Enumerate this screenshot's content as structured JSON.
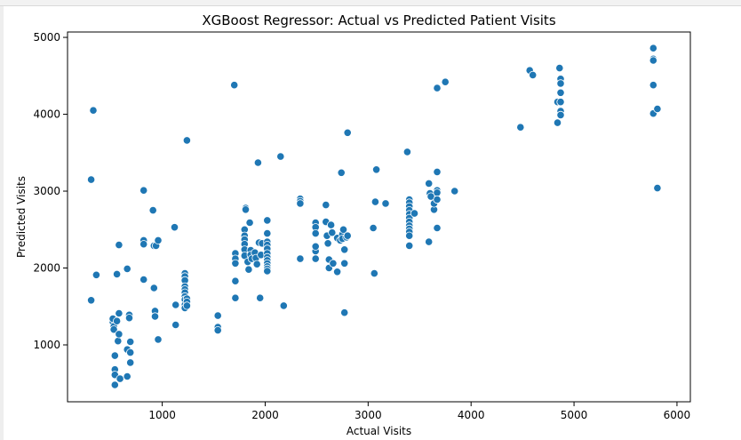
{
  "chart_data": {
    "type": "scatter",
    "title": "XGBoost Regressor: Actual vs Predicted Patient Visits",
    "xlabel": "Actual Visits",
    "ylabel": "Predicted Visits",
    "xlim": [
      80,
      6130
    ],
    "ylim": [
      260,
      5070
    ],
    "xticks": [
      1000,
      2000,
      3000,
      4000,
      5000,
      6000
    ],
    "yticks": [
      1000,
      2000,
      3000,
      4000,
      5000
    ],
    "xtick_labels": [
      "1000",
      "2000",
      "3000",
      "4000",
      "5000",
      "6000"
    ],
    "ytick_labels": [
      "1000",
      "2000",
      "3000",
      "4000",
      "5000"
    ],
    "grid": false,
    "marker_color": "#1f77b4",
    "marker_edge_color": "#ffffff",
    "points": [
      [
        330,
        4050
      ],
      [
        310,
        3150
      ],
      [
        310,
        1580
      ],
      [
        360,
        1910
      ],
      [
        520,
        1300
      ],
      [
        520,
        1340
      ],
      [
        530,
        1240
      ],
      [
        530,
        1200
      ],
      [
        540,
        860
      ],
      [
        540,
        680
      ],
      [
        540,
        610
      ],
      [
        540,
        480
      ],
      [
        560,
        1920
      ],
      [
        560,
        1310
      ],
      [
        570,
        1050
      ],
      [
        580,
        2300
      ],
      [
        580,
        1410
      ],
      [
        580,
        1140
      ],
      [
        590,
        560
      ],
      [
        660,
        1990
      ],
      [
        660,
        940
      ],
      [
        660,
        590
      ],
      [
        680,
        1390
      ],
      [
        680,
        1350
      ],
      [
        690,
        1040
      ],
      [
        690,
        900
      ],
      [
        690,
        770
      ],
      [
        820,
        3010
      ],
      [
        820,
        2360
      ],
      [
        820,
        2310
      ],
      [
        820,
        1850
      ],
      [
        910,
        2750
      ],
      [
        920,
        2290
      ],
      [
        920,
        1740
      ],
      [
        930,
        1440
      ],
      [
        930,
        1370
      ],
      [
        940,
        2290
      ],
      [
        960,
        2360
      ],
      [
        960,
        1070
      ],
      [
        1120,
        2530
      ],
      [
        1130,
        1520
      ],
      [
        1130,
        1260
      ],
      [
        1220,
        1930
      ],
      [
        1220,
        1890
      ],
      [
        1220,
        1840
      ],
      [
        1220,
        1760
      ],
      [
        1220,
        1720
      ],
      [
        1220,
        1680
      ],
      [
        1220,
        1630
      ],
      [
        1220,
        1590
      ],
      [
        1220,
        1520
      ],
      [
        1220,
        1480
      ],
      [
        1240,
        3660
      ],
      [
        1240,
        1600
      ],
      [
        1240,
        1560
      ],
      [
        1240,
        1510
      ],
      [
        1540,
        1380
      ],
      [
        1540,
        1230
      ],
      [
        1540,
        1190
      ],
      [
        1700,
        4380
      ],
      [
        1710,
        2190
      ],
      [
        1710,
        2120
      ],
      [
        1710,
        2060
      ],
      [
        1710,
        1830
      ],
      [
        1710,
        1610
      ],
      [
        1800,
        2500
      ],
      [
        1800,
        2420
      ],
      [
        1800,
        2370
      ],
      [
        1800,
        2310
      ],
      [
        1800,
        2240
      ],
      [
        1800,
        2160
      ],
      [
        1810,
        2780
      ],
      [
        1810,
        2760
      ],
      [
        1830,
        2080
      ],
      [
        1840,
        1980
      ],
      [
        1850,
        2590
      ],
      [
        1860,
        2230
      ],
      [
        1860,
        2170
      ],
      [
        1870,
        2120
      ],
      [
        1900,
        2200
      ],
      [
        1910,
        2130
      ],
      [
        1920,
        2050
      ],
      [
        1930,
        3370
      ],
      [
        1940,
        2330
      ],
      [
        1950,
        1610
      ],
      [
        1960,
        2170
      ],
      [
        1970,
        2320
      ],
      [
        2020,
        2620
      ],
      [
        2020,
        2450
      ],
      [
        2020,
        2340
      ],
      [
        2020,
        2300
      ],
      [
        2020,
        2250
      ],
      [
        2020,
        2190
      ],
      [
        2020,
        2140
      ],
      [
        2020,
        2100
      ],
      [
        2020,
        2060
      ],
      [
        2020,
        2020
      ],
      [
        2020,
        1990
      ],
      [
        2020,
        1960
      ],
      [
        2150,
        3450
      ],
      [
        2180,
        1510
      ],
      [
        2340,
        2900
      ],
      [
        2340,
        2870
      ],
      [
        2340,
        2840
      ],
      [
        2340,
        2120
      ],
      [
        2490,
        2590
      ],
      [
        2490,
        2530
      ],
      [
        2490,
        2450
      ],
      [
        2490,
        2220
      ],
      [
        2490,
        2120
      ],
      [
        2490,
        2280
      ],
      [
        2590,
        2820
      ],
      [
        2590,
        2600
      ],
      [
        2600,
        2420
      ],
      [
        2610,
        2320
      ],
      [
        2620,
        2110
      ],
      [
        2620,
        2000
      ],
      [
        2640,
        2560
      ],
      [
        2650,
        2460
      ],
      [
        2660,
        2060
      ],
      [
        2700,
        2390
      ],
      [
        2700,
        1950
      ],
      [
        2730,
        2360
      ],
      [
        2740,
        3240
      ],
      [
        2750,
        2440
      ],
      [
        2750,
        2380
      ],
      [
        2760,
        2500
      ],
      [
        2770,
        2240
      ],
      [
        2770,
        2060
      ],
      [
        2770,
        1420
      ],
      [
        2790,
        2400
      ],
      [
        2800,
        3760
      ],
      [
        2800,
        2420
      ],
      [
        3050,
        2520
      ],
      [
        3060,
        1930
      ],
      [
        3070,
        2860
      ],
      [
        3080,
        3280
      ],
      [
        3170,
        2840
      ],
      [
        3380,
        3510
      ],
      [
        3400,
        2890
      ],
      [
        3400,
        2850
      ],
      [
        3400,
        2800
      ],
      [
        3400,
        2750
      ],
      [
        3400,
        2700
      ],
      [
        3400,
        2650
      ],
      [
        3400,
        2600
      ],
      [
        3400,
        2550
      ],
      [
        3400,
        2510
      ],
      [
        3400,
        2470
      ],
      [
        3400,
        2420
      ],
      [
        3400,
        2290
      ],
      [
        3450,
        2710
      ],
      [
        3590,
        3100
      ],
      [
        3590,
        2340
      ],
      [
        3600,
        2970
      ],
      [
        3610,
        2930
      ],
      [
        3640,
        2760
      ],
      [
        3640,
        2840
      ],
      [
        3670,
        4340
      ],
      [
        3670,
        3250
      ],
      [
        3670,
        3010
      ],
      [
        3670,
        2980
      ],
      [
        3670,
        2890
      ],
      [
        3670,
        2520
      ],
      [
        3750,
        4420
      ],
      [
        3840,
        3000
      ],
      [
        4480,
        3830
      ],
      [
        4570,
        4570
      ],
      [
        4600,
        4510
      ],
      [
        4840,
        4160
      ],
      [
        4840,
        3890
      ],
      [
        4860,
        4600
      ],
      [
        4870,
        4460
      ],
      [
        4870,
        4400
      ],
      [
        4870,
        4280
      ],
      [
        4870,
        4160
      ],
      [
        4870,
        4040
      ],
      [
        4870,
        3990
      ],
      [
        5770,
        4860
      ],
      [
        5770,
        4720
      ],
      [
        5770,
        4700
      ],
      [
        5770,
        4380
      ],
      [
        5770,
        4010
      ],
      [
        5810,
        4070
      ],
      [
        5810,
        3040
      ]
    ]
  }
}
